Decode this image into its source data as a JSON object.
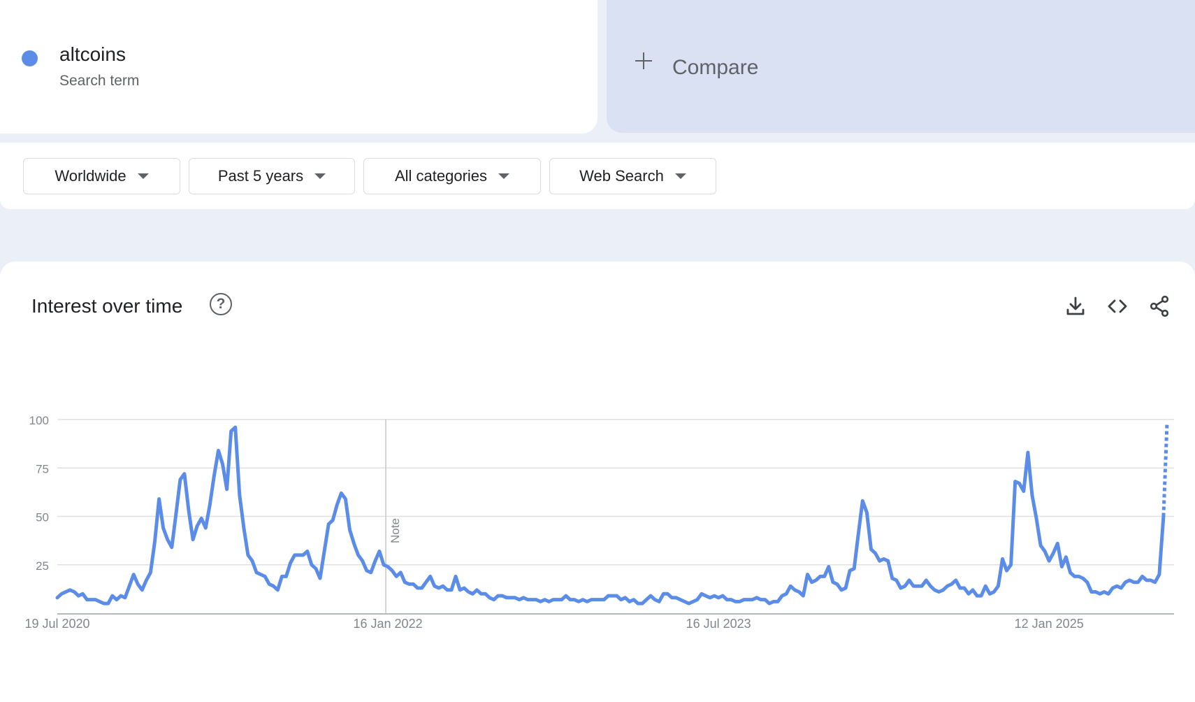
{
  "term_card": {
    "name": "altcoins",
    "subtitle": "Search term",
    "color": "#5b8de8"
  },
  "compare": {
    "label": "Compare"
  },
  "filters": [
    {
      "label": "Worldwide"
    },
    {
      "label": "Past 5 years"
    },
    {
      "label": "All categories"
    },
    {
      "label": "Web Search"
    }
  ],
  "panel": {
    "title": "Interest over time",
    "help_icon": "?",
    "actions": [
      "download-icon",
      "embed-code-icon",
      "share-icon"
    ]
  },
  "chart_data": {
    "type": "line",
    "series": [
      {
        "name": "altcoins",
        "color": "#5b8de8",
        "values": [
          8,
          10,
          11,
          12,
          11,
          9,
          10,
          7,
          7,
          7,
          6,
          5,
          5,
          9,
          7,
          9,
          8,
          14,
          20,
          15,
          12,
          17,
          21,
          37,
          59,
          44,
          38,
          34,
          51,
          69,
          72,
          53,
          38,
          45,
          49,
          44,
          56,
          71,
          84,
          77,
          64,
          94,
          96,
          61,
          44,
          30,
          27,
          21,
          20,
          19,
          15,
          14,
          12,
          19,
          19,
          26,
          30,
          30,
          30,
          32,
          25,
          23,
          18,
          32,
          46,
          48,
          56,
          62,
          59,
          43,
          36,
          30,
          27,
          22,
          21,
          27,
          32,
          25,
          24,
          22,
          19,
          21,
          16,
          15,
          15,
          13,
          13,
          16,
          19,
          14,
          13,
          14,
          12,
          12,
          19,
          12,
          13,
          11,
          10,
          12,
          10,
          10,
          8,
          7,
          9,
          9,
          8,
          8,
          8,
          7,
          8,
          7,
          7,
          7,
          6,
          7,
          6,
          7,
          7,
          7,
          9,
          7,
          7,
          6,
          7,
          6,
          7,
          7,
          7,
          7,
          9,
          9,
          9,
          7,
          8,
          6,
          7,
          5,
          5,
          7,
          9,
          7,
          6,
          10,
          10,
          8,
          8,
          7,
          6,
          5,
          6,
          7,
          10,
          9,
          8,
          9,
          8,
          9,
          7,
          7,
          6,
          6,
          7,
          7,
          7,
          8,
          7,
          7,
          5,
          6,
          6,
          9,
          10,
          14,
          12,
          11,
          9,
          20,
          16,
          17,
          19,
          19,
          24,
          16,
          15,
          12,
          13,
          22,
          23,
          41,
          58,
          52,
          33,
          31,
          27,
          28,
          27,
          18,
          17,
          13,
          14,
          17,
          14,
          14,
          14,
          17,
          14,
          12,
          11,
          12,
          14,
          15,
          17,
          13,
          13,
          10,
          12,
          9,
          9,
          14,
          10,
          11,
          14,
          28,
          22,
          25,
          68,
          67,
          63,
          83,
          61,
          49,
          35,
          32,
          27,
          31,
          36,
          24,
          29,
          21,
          19,
          19,
          18,
          16,
          11,
          11,
          10,
          11,
          10,
          13,
          14,
          13,
          16,
          17,
          16,
          16,
          19,
          17,
          17,
          16,
          20,
          50
        ],
        "partial_last": {
          "value": 98,
          "style": "dotted"
        }
      }
    ],
    "x_labels": [
      "19 Jul 2020",
      "16 Jan 2022",
      "16 Jul 2023",
      "12 Jan 2025"
    ],
    "y_ticks": [
      100,
      75,
      50,
      25
    ],
    "ylim": [
      0,
      100
    ],
    "annotation": {
      "text": "Note",
      "at_label": "16 Jan 2022"
    },
    "grid": true,
    "legend": "none"
  }
}
